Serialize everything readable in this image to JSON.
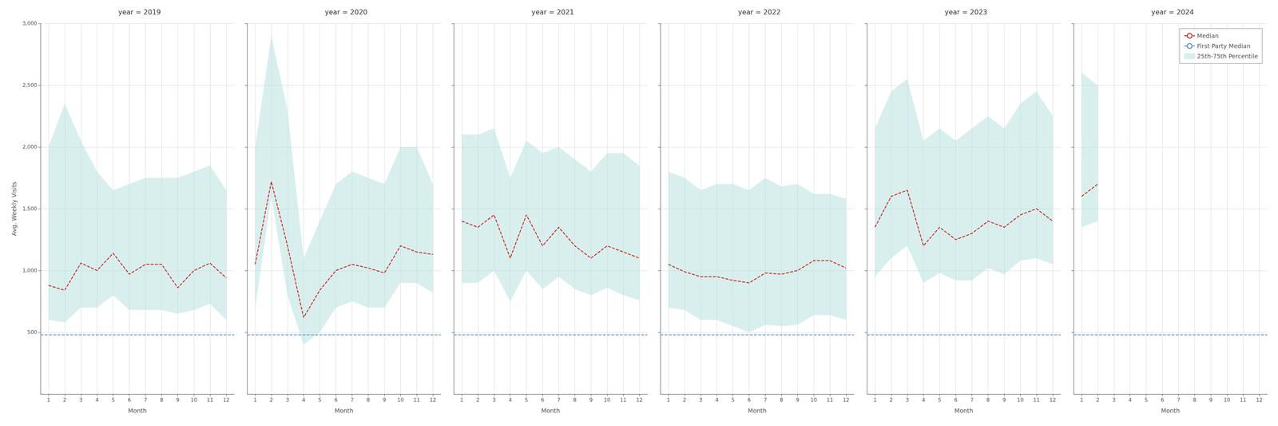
{
  "chart_data": [
    {
      "type": "line",
      "title": "year = 2019",
      "xlabel": "Month",
      "ylabel": "Avg. Weekly Visits",
      "x": [
        1,
        2,
        3,
        4,
        5,
        6,
        7,
        8,
        9,
        10,
        11,
        12
      ],
      "xlim": [
        0.5,
        12.5
      ],
      "xticks": [
        1,
        2,
        3,
        4,
        5,
        6,
        7,
        8,
        9,
        10,
        11,
        12
      ],
      "ylim": [
        0,
        3000
      ],
      "yticks": [
        500,
        1000,
        1500,
        2000,
        2500,
        3000
      ],
      "grid": true,
      "series": [
        {
          "name": "Median",
          "color": "#cc2222",
          "line_style": "dashed",
          "values": [
            880,
            840,
            1060,
            1000,
            1140,
            970,
            1050,
            1050,
            860,
            1000,
            1060,
            940
          ]
        },
        {
          "name": "First Party Median",
          "type": "hline",
          "color": "#4488cc",
          "line_style": "dashed",
          "y": 480
        },
        {
          "name": "25th-75th Percentile",
          "type": "band",
          "color": "#b2dfdb",
          "lower": [
            600,
            580,
            700,
            700,
            800,
            680,
            680,
            680,
            650,
            680,
            730,
            600
          ],
          "upper": [
            2000,
            2350,
            2050,
            1800,
            1650,
            1700,
            1750,
            1750,
            1750,
            1800,
            1850,
            1650
          ]
        }
      ]
    },
    {
      "type": "line",
      "title": "year = 2020",
      "xlabel": "Month",
      "tick_labels": "x",
      "x": [
        1,
        2,
        3,
        4,
        5,
        6,
        7,
        8,
        9,
        10,
        11,
        12
      ],
      "xlim": [
        0.5,
        12.5
      ],
      "xticks": [
        1,
        2,
        3,
        4,
        5,
        6,
        7,
        8,
        9,
        10,
        11,
        12
      ],
      "ylim": [
        0,
        3000
      ],
      "yticks": [
        500,
        1000,
        1500,
        2000,
        2500,
        3000
      ],
      "grid": true,
      "series": [
        {
          "name": "Median",
          "color": "#cc2222",
          "line_style": "dashed",
          "values": [
            1050,
            1720,
            1200,
            620,
            840,
            1000,
            1050,
            1020,
            980,
            1200,
            1150,
            1130
          ]
        },
        {
          "name": "First Party Median",
          "type": "hline",
          "color": "#4488cc",
          "line_style": "dashed",
          "y": 480
        },
        {
          "name": "25th-75th Percentile",
          "type": "band",
          "color": "#b2dfdb",
          "lower": [
            700,
            1600,
            800,
            400,
            500,
            700,
            750,
            700,
            700,
            900,
            900,
            820
          ],
          "upper": [
            2000,
            2900,
            2300,
            1100,
            1400,
            1700,
            1800,
            1750,
            1700,
            2000,
            2000,
            1700
          ]
        }
      ]
    },
    {
      "type": "line",
      "title": "year = 2021",
      "xlabel": "Month",
      "tick_labels": "x",
      "x": [
        1,
        2,
        3,
        4,
        5,
        6,
        7,
        8,
        9,
        10,
        11,
        12
      ],
      "xlim": [
        0.5,
        12.5
      ],
      "xticks": [
        1,
        2,
        3,
        4,
        5,
        6,
        7,
        8,
        9,
        10,
        11,
        12
      ],
      "ylim": [
        0,
        3000
      ],
      "yticks": [
        500,
        1000,
        1500,
        2000,
        2500,
        3000
      ],
      "grid": true,
      "series": [
        {
          "name": "Median",
          "color": "#cc2222",
          "line_style": "dashed",
          "values": [
            1400,
            1350,
            1450,
            1100,
            1450,
            1200,
            1350,
            1200,
            1100,
            1200,
            1150,
            1100
          ]
        },
        {
          "name": "First Party Median",
          "type": "hline",
          "color": "#4488cc",
          "line_style": "dashed",
          "y": 480
        },
        {
          "name": "25th-75th Percentile",
          "type": "band",
          "color": "#b2dfdb",
          "lower": [
            900,
            900,
            1000,
            750,
            1000,
            850,
            950,
            850,
            800,
            860,
            800,
            760
          ],
          "upper": [
            2100,
            2100,
            2150,
            1750,
            2050,
            1950,
            2000,
            1900,
            1800,
            1950,
            1950,
            1850
          ]
        }
      ]
    },
    {
      "type": "line",
      "title": "year = 2022",
      "xlabel": "Month",
      "tick_labels": "x",
      "x": [
        1,
        2,
        3,
        4,
        5,
        6,
        7,
        8,
        9,
        10,
        11,
        12
      ],
      "xlim": [
        0.5,
        12.5
      ],
      "xticks": [
        1,
        2,
        3,
        4,
        5,
        6,
        7,
        8,
        9,
        10,
        11,
        12
      ],
      "ylim": [
        0,
        3000
      ],
      "yticks": [
        500,
        1000,
        1500,
        2000,
        2500,
        3000
      ],
      "grid": true,
      "series": [
        {
          "name": "Median",
          "color": "#cc2222",
          "line_style": "dashed",
          "values": [
            1050,
            990,
            950,
            950,
            920,
            900,
            980,
            970,
            1000,
            1080,
            1080,
            1020
          ]
        },
        {
          "name": "First Party Median",
          "type": "hline",
          "color": "#4488cc",
          "line_style": "dashed",
          "y": 480
        },
        {
          "name": "25th-75th Percentile",
          "type": "band",
          "color": "#b2dfdb",
          "lower": [
            700,
            680,
            600,
            600,
            550,
            500,
            560,
            550,
            560,
            640,
            640,
            600
          ],
          "upper": [
            1800,
            1750,
            1650,
            1700,
            1700,
            1650,
            1750,
            1680,
            1700,
            1620,
            1620,
            1580
          ]
        }
      ]
    },
    {
      "type": "line",
      "title": "year = 2023",
      "xlabel": "Month",
      "tick_labels": "x",
      "x": [
        1,
        2,
        3,
        4,
        5,
        6,
        7,
        8,
        9,
        10,
        11,
        12
      ],
      "xlim": [
        0.5,
        12.5
      ],
      "xticks": [
        1,
        2,
        3,
        4,
        5,
        6,
        7,
        8,
        9,
        10,
        11,
        12
      ],
      "ylim": [
        0,
        3000
      ],
      "yticks": [
        500,
        1000,
        1500,
        2000,
        2500,
        3000
      ],
      "grid": true,
      "series": [
        {
          "name": "Median",
          "color": "#cc2222",
          "line_style": "dashed",
          "values": [
            1350,
            1600,
            1650,
            1200,
            1350,
            1250,
            1300,
            1400,
            1350,
            1450,
            1500,
            1400
          ]
        },
        {
          "name": "First Party Median",
          "type": "hline",
          "color": "#4488cc",
          "line_style": "dashed",
          "y": 480
        },
        {
          "name": "25th-75th Percentile",
          "type": "band",
          "color": "#b2dfdb",
          "lower": [
            950,
            1100,
            1200,
            900,
            980,
            920,
            920,
            1020,
            970,
            1080,
            1100,
            1050
          ],
          "upper": [
            2150,
            2450,
            2550,
            2050,
            2150,
            2050,
            2150,
            2250,
            2150,
            2350,
            2450,
            2250
          ]
        }
      ]
    },
    {
      "type": "line",
      "title": "year = 2024",
      "xlabel": "Month",
      "tick_labels": "x",
      "legend": "upper right",
      "x": [
        1,
        2,
        3,
        4,
        5,
        6,
        7,
        8,
        9,
        10,
        11,
        12
      ],
      "xlim": [
        0.5,
        12.5
      ],
      "xticks": [
        1,
        2,
        3,
        4,
        5,
        6,
        7,
        8,
        9,
        10,
        11,
        12
      ],
      "ylim": [
        0,
        3000
      ],
      "yticks": [
        500,
        1000,
        1500,
        2000,
        2500,
        3000
      ],
      "grid": true,
      "series": [
        {
          "name": "Median",
          "color": "#cc2222",
          "line_style": "dashed",
          "values": [
            1600,
            1700,
            null,
            null,
            null,
            null,
            null,
            null,
            null,
            null,
            null,
            null
          ]
        },
        {
          "name": "First Party Median",
          "type": "hline",
          "color": "#4488cc",
          "line_style": "dashed",
          "y": 480
        },
        {
          "name": "25th-75th Percentile",
          "type": "band",
          "color": "#b2dfdb",
          "lower": [
            1350,
            1400,
            null,
            null,
            null,
            null,
            null,
            null,
            null,
            null,
            null,
            null
          ],
          "upper": [
            2600,
            2500,
            null,
            null,
            null,
            null,
            null,
            null,
            null,
            null,
            null,
            null
          ]
        }
      ]
    }
  ]
}
